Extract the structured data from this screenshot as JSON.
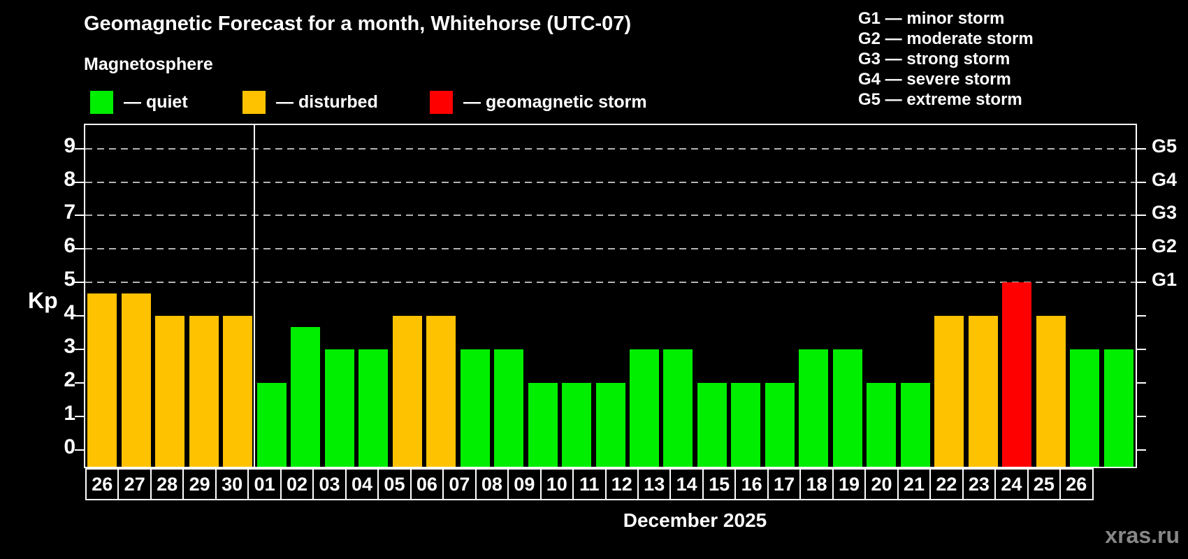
{
  "header": {
    "title": "Geomagnetic Forecast for a month, Whitehorse (UTC-07)",
    "subtitle": "Magnetosphere"
  },
  "legend": {
    "items": [
      {
        "name": "quiet",
        "label": "— quiet",
        "color": "#00ee00",
        "x": 129
      },
      {
        "name": "disturbed",
        "label": "— disturbed",
        "color": "#ffc200",
        "x": 347
      },
      {
        "name": "storm",
        "label": "— geomagnetic storm",
        "color": "#ff0000",
        "x": 615
      }
    ]
  },
  "g_legend": {
    "items": [
      "G1 — minor storm",
      "G2 — moderate storm",
      "G3 — strong storm",
      "G4 — severe storm",
      "G5 — extreme storm"
    ]
  },
  "chart_data": {
    "type": "bar",
    "title": "Geomagnetic Forecast for a month, Whitehorse (UTC-07)",
    "ylabel": "Kp",
    "xlabel": "December 2025",
    "ylim": [
      -0.5,
      9.7
    ],
    "yticks": [
      0,
      1,
      2,
      3,
      4,
      5,
      6,
      7,
      8,
      9
    ],
    "gridlines": [
      5,
      6,
      7,
      8,
      9
    ],
    "grid_style": "dashed",
    "right_axis": {
      "labels": [
        "G1",
        "G2",
        "G3",
        "G4",
        "G5"
      ],
      "levels": [
        5,
        6,
        7,
        8,
        9
      ]
    },
    "categories": [
      "26",
      "27",
      "28",
      "29",
      "30",
      "01",
      "02",
      "03",
      "04",
      "05",
      "06",
      "07",
      "08",
      "09",
      "10",
      "11",
      "12",
      "13",
      "14",
      "15",
      "16",
      "17",
      "18",
      "19",
      "20",
      "21",
      "22",
      "23",
      "24",
      "25",
      "26"
    ],
    "values": [
      4.67,
      4.67,
      4,
      4,
      4,
      2,
      3.67,
      3,
      3,
      4,
      4,
      3,
      3,
      2,
      2,
      2,
      3,
      3,
      2,
      2,
      2,
      3,
      3,
      2,
      2,
      4,
      4,
      5,
      4,
      3,
      3
    ],
    "month_divider_after_index": 4,
    "colors": {
      "quiet": "#00ee00",
      "disturbed": "#ffc200",
      "storm": "#ff0000"
    },
    "thresholds": {
      "disturbed_min": 4,
      "storm_min": 5
    }
  },
  "footer": {
    "month_label": "December 2025",
    "watermark": "xras.ru"
  }
}
